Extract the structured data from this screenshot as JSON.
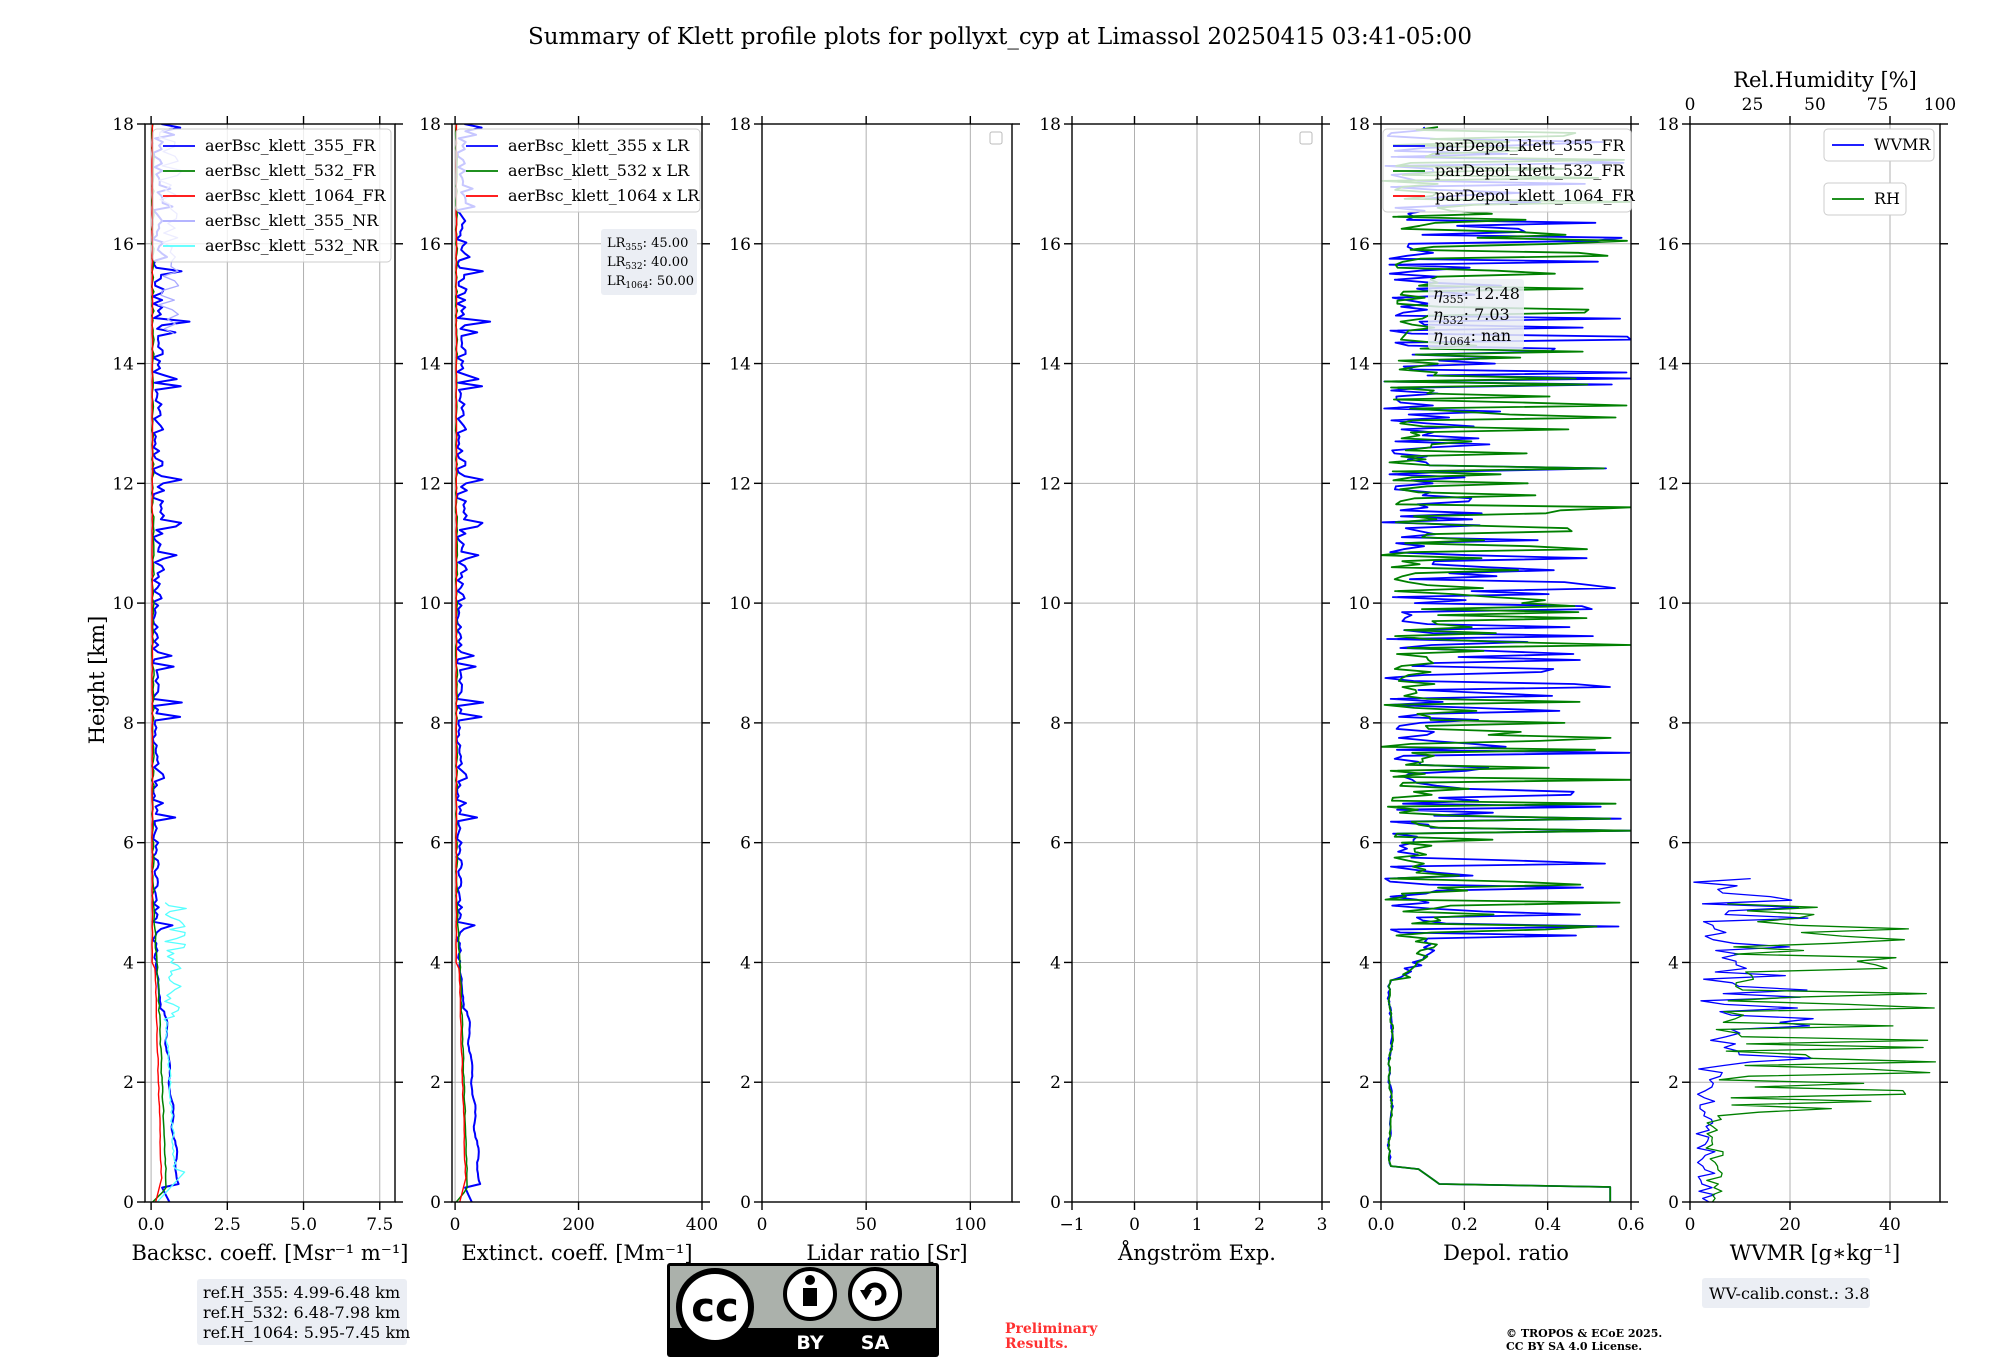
{
  "figure": {
    "title": "Summary of Klett profile plots for pollyxt_cyp at Limassol 20250415 03:41-05:00",
    "ylabel": "Height [km]",
    "ylim": [
      0,
      18
    ],
    "yticks": [
      0,
      2,
      4,
      6,
      8,
      10,
      12,
      14,
      16,
      18
    ],
    "colors": {
      "blue": "#0000ff",
      "green": "#008000",
      "red": "#ff0000",
      "lightblue": "#aaaaff",
      "cyan": "#55ffff"
    }
  },
  "chart_data": [
    {
      "id": "bsc",
      "type": "line",
      "xlabel": "Backsc. coeff. [Msr⁻¹ m⁻¹]",
      "xlim": [
        -0.2,
        8
      ],
      "xticks": [
        0,
        2.5,
        5,
        7.5
      ],
      "xtick_labels": [
        "0.0",
        "2.5",
        "5.0",
        "7.5"
      ],
      "legend_position": "top-right",
      "series": [
        {
          "name": "aerBsc_klett_355_FR",
          "color": "#0000ff"
        },
        {
          "name": "aerBsc_klett_532_FR",
          "color": "#008000"
        },
        {
          "name": "aerBsc_klett_1064_FR",
          "color": "#ff0000"
        },
        {
          "name": "aerBsc_klett_355_NR",
          "color": "#aaaaff"
        },
        {
          "name": "aerBsc_klett_532_NR",
          "color": "#55ffff"
        }
      ],
      "info": [
        "ref.H_355: 4.99-6.48 km",
        "ref.H_532: 6.48-7.98 km",
        "ref.H_1064: 5.95-7.45 km"
      ]
    },
    {
      "id": "ext",
      "type": "line",
      "xlabel": "Extinct. coeff. [Mm⁻¹]",
      "xlim": [
        -5,
        400
      ],
      "xticks": [
        0,
        200,
        400
      ],
      "xtick_labels": [
        "0",
        "200",
        "400"
      ],
      "legend_position": "top-right",
      "series": [
        {
          "name": "aerBsc_klett_355 x LR",
          "color": "#0000ff"
        },
        {
          "name": "aerBsc_klett_532 x LR",
          "color": "#008000"
        },
        {
          "name": "aerBsc_klett_1064 x LR",
          "color": "#ff0000"
        }
      ],
      "lidar_ratios": [
        {
          "label": "LR",
          "sub": "355",
          "value": ": 45.00"
        },
        {
          "label": "LR",
          "sub": "532",
          "value": ": 40.00"
        },
        {
          "label": "LR",
          "sub": "1064",
          "value": ": 50.00"
        }
      ]
    },
    {
      "id": "lr",
      "type": "line",
      "xlabel": "Lidar ratio [Sr]",
      "xlim": [
        0,
        120
      ],
      "xticks": [
        0,
        50,
        100
      ],
      "xtick_labels": [
        "0",
        "50",
        "100"
      ],
      "series": []
    },
    {
      "id": "ae",
      "type": "line",
      "xlabel": "Ångström Exp.",
      "xlim": [
        -1,
        3
      ],
      "xticks": [
        -1,
        0,
        1,
        2,
        3
      ],
      "xtick_labels": [
        "−1",
        "0",
        "1",
        "2",
        "3"
      ],
      "series": []
    },
    {
      "id": "depol",
      "type": "line",
      "xlabel": "Depol. ratio",
      "xlim": [
        0,
        0.6
      ],
      "xticks": [
        0,
        0.2,
        0.4,
        0.6
      ],
      "xtick_labels": [
        "0.0",
        "0.2",
        "0.4",
        "0.6"
      ],
      "legend_position": "top",
      "series": [
        {
          "name": "parDepol_klett_355_FR",
          "color": "#0000ff"
        },
        {
          "name": "parDepol_klett_532_FR",
          "color": "#008000"
        },
        {
          "name": "parDepol_klett_1064_FR",
          "color": "#ff0000"
        }
      ],
      "eta": [
        {
          "label": "η",
          "sub": "355",
          "value": ": 12.48"
        },
        {
          "label": "η",
          "sub": "532",
          "value": ": 7.03"
        },
        {
          "label": "η",
          "sub": "1064",
          "value": ": nan"
        }
      ]
    },
    {
      "id": "wv",
      "type": "line",
      "xlabel": "WVMR [g∗kg⁻¹]",
      "xlim": [
        0,
        50
      ],
      "xticks": [
        0,
        20,
        40
      ],
      "xtick_labels": [
        "0",
        "20",
        "40"
      ],
      "top_xlabel": "Rel.Humidity [%]",
      "top_xlim": [
        0,
        100
      ],
      "top_xticks": [
        0,
        25,
        50,
        75,
        100
      ],
      "top_xtick_labels": [
        "0",
        "25",
        "50",
        "75",
        "100"
      ],
      "series": [
        {
          "name": "WVMR",
          "color": "#0000ff"
        },
        {
          "name": "RH",
          "color": "#008000"
        }
      ],
      "info": [
        "WV-calib.const.: 3.8"
      ]
    }
  ],
  "footer": {
    "license_badge_top": "cc",
    "license_badge_by": "BY",
    "license_badge_sa": "SA",
    "preliminary_1": "Preliminary",
    "preliminary_2": "Results.",
    "copyright_1": "© TROPOS & ECoE 2025.",
    "copyright_2": "CC BY SA 4.0 License."
  }
}
